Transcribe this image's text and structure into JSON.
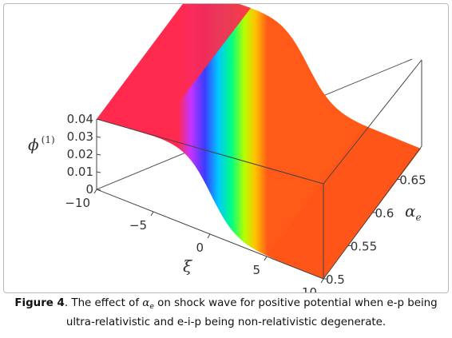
{
  "chart_data": {
    "type": "surface",
    "title": "",
    "zlabel": "ϕ",
    "zlabel_superscript": "(1)",
    "xlabel": "ξ",
    "ylabel": "α",
    "ylabel_subscript": "e",
    "x_ticks": [
      "−10",
      "−5",
      "0",
      "5",
      "10"
    ],
    "y_ticks": [
      "0.5",
      "0.55",
      "0.6",
      "0.65"
    ],
    "z_ticks": [
      "0",
      "0.01",
      "0.02",
      "0.03",
      "0.04"
    ],
    "xlim": [
      -10,
      10
    ],
    "ylim": [
      0.5,
      0.7
    ],
    "zlim": [
      0,
      0.04
    ],
    "surface": {
      "shape": "kink",
      "amplitude": 0.04,
      "description_values": {
        "xi": [
          -10,
          -5,
          -2.5,
          0,
          2.5,
          5,
          10
        ],
        "phi": [
          0.04,
          0.039,
          0.035,
          0.02,
          0.005,
          0.001,
          0.0
        ]
      }
    },
    "grid": false,
    "box": true
  },
  "caption": {
    "label": "Figure 4",
    "text_before": ". The effect of ",
    "symbol": "α",
    "symbol_sub": "e",
    "text_after": " on shock wave for positive potential when e-p being ultra-relativistic and e-i-p being non-relativistic degenerate."
  }
}
